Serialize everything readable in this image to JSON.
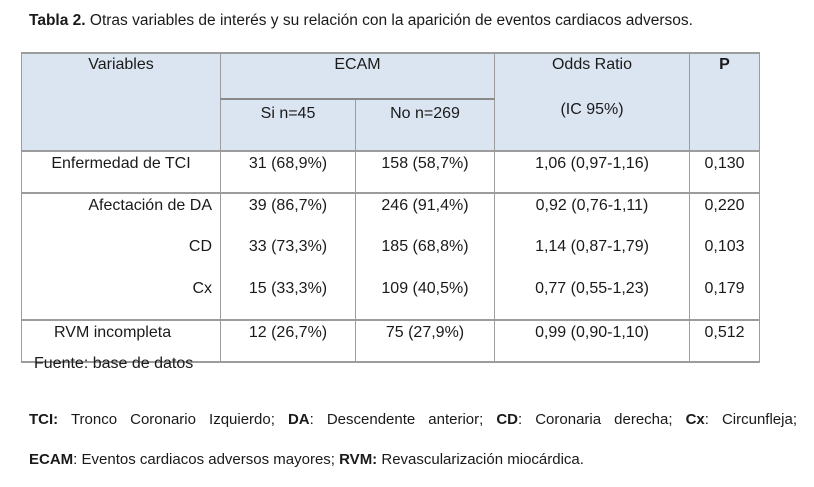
{
  "title": {
    "label": "Tabla 2.",
    "text": " Otras variables de interés y su relación con la aparición de eventos cardiacos adversos."
  },
  "table": {
    "headers": {
      "variables": "Variables",
      "ecam": "ECAM",
      "si": "Si n=45",
      "no": "No n=269",
      "odds": "Odds Ratio",
      "ic": "(IC 95%)",
      "p": "P"
    },
    "rows": [
      {
        "variable": "Enfermedad de TCI",
        "si": "31 (68,9%)",
        "no": "158 (58,7%)",
        "or": "1,06 (0,97-1,16)",
        "p": "0,130"
      },
      {
        "variable": "Afectación de DA",
        "si": "39 (86,7%)",
        "no": "246 (91,4%)",
        "or": "0,92 (0,76-1,11)",
        "p": "0,220"
      },
      {
        "variable": "CD",
        "si": "33 (73,3%)",
        "no": "185 (68,8%)",
        "or": "1,14 (0,87-1,79)",
        "p": "0,103"
      },
      {
        "variable": "Cx",
        "si": "15 (33,3%)",
        "no": "109 (40,5%)",
        "or": "0,77 (0,55-1,23)",
        "p": "0,179"
      },
      {
        "variable": "RVM incompleta",
        "si": "12 (26,7%)",
        "no": "75 (27,9%)",
        "or": "0,99 (0,90-1,10)",
        "p": "0,512"
      }
    ],
    "header_bg": "#dbe5f1"
  },
  "source": "Fuente: base de datos",
  "notes": [
    {
      "abbr": "TCI:",
      "text": " Tronco Coronario Izquierdo; "
    },
    {
      "abbr": "DA",
      "text": ": Descendente anterior; "
    },
    {
      "abbr": "CD",
      "text": ": Coronaria derecha; "
    },
    {
      "abbr": "Cx",
      "text": ": Circunfleja;"
    },
    {
      "abbr": "ECAM",
      "text": ": Eventos cardiacos adversos mayores; "
    },
    {
      "abbr": "RVM:",
      "text": " Revascularización miocárdica."
    }
  ]
}
